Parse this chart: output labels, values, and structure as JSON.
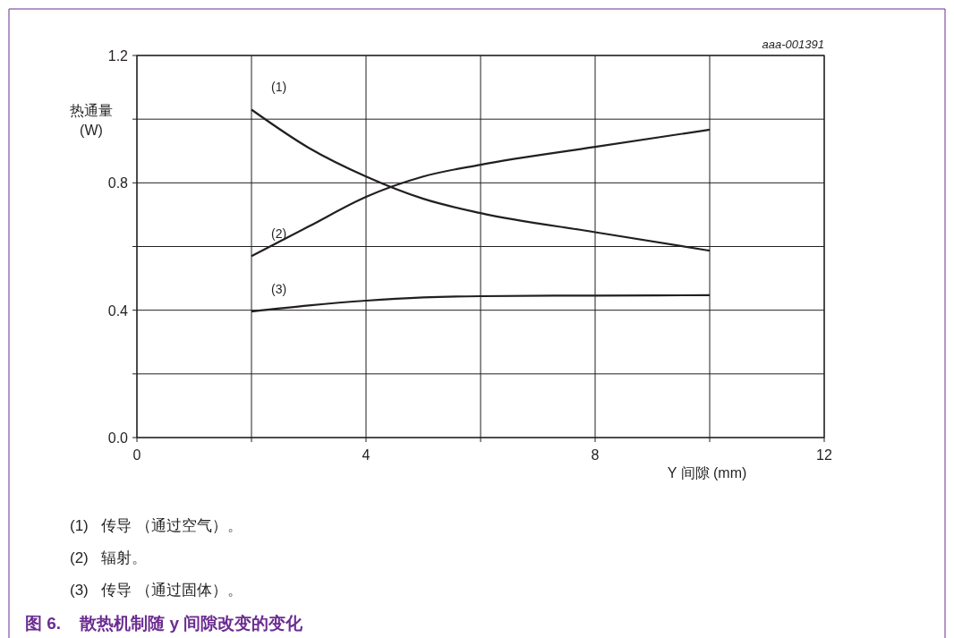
{
  "chart_data": {
    "type": "line",
    "title": "图 6.    散热机制随 y 间隙改变的变化",
    "xlabel": "Y 间隙 (mm)",
    "ylabel": "热通量\n(W)",
    "x": [
      2,
      3,
      4,
      5,
      6,
      8,
      10
    ],
    "series": [
      {
        "name": "(1)",
        "color": "#231f20",
        "values": [
          1.03,
          0.91,
          0.82,
          0.75,
          0.705,
          0.645,
          0.587
        ]
      },
      {
        "name": "(2)",
        "color": "#231f20",
        "values": [
          0.57,
          0.663,
          0.756,
          0.82,
          0.857,
          0.913,
          0.967
        ]
      },
      {
        "name": "(3)",
        "color": "#231f20",
        "values": [
          0.396,
          0.415,
          0.43,
          0.44,
          0.444,
          0.446,
          0.447
        ]
      }
    ],
    "xlim": [
      0,
      12
    ],
    "ylim": [
      0,
      1.2
    ],
    "xticks": [
      0,
      {
        "value": 2,
        "label": null
      },
      4,
      {
        "value": 6,
        "label": null
      },
      8,
      {
        "value": 10,
        "label": null
      },
      12
    ],
    "yticks": [
      "0.0",
      {
        "value": 0.2,
        "label": null
      },
      0.4,
      {
        "value": 0.6,
        "label": null
      },
      0.8,
      {
        "value": 1,
        "label": null
      },
      1.2
    ],
    "grid": true,
    "marker": "none",
    "line_style": "solid",
    "annotations": [
      "aaa-001391",
      "(1)   传导 （通过空气）。",
      "(2)   辐射。",
      "(3)   传导 （通过固体）。"
    ]
  }
}
